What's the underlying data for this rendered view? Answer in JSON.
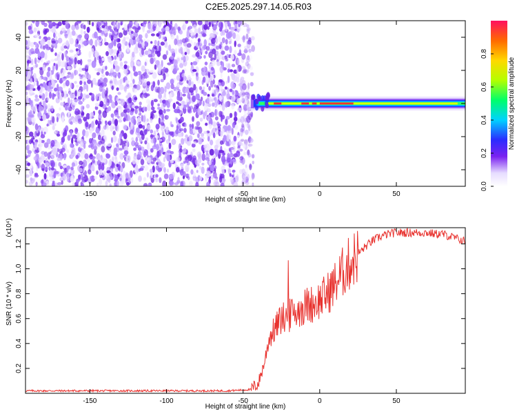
{
  "title": "C2E5.2025.297.14.05.R03",
  "chart_data": [
    {
      "type": "heatmap",
      "xlabel": "Height of straight line (km)",
      "ylabel": "Frequency (Hz)",
      "xlim": [
        -192,
        95
      ],
      "ylim": [
        -50,
        50
      ],
      "xticks": [
        -150,
        -100,
        -50,
        0,
        50
      ],
      "yticks": [
        -40,
        -20,
        0,
        20,
        40
      ],
      "colorbar": {
        "label": "Normalized spectral amplitude",
        "range": [
          0,
          1
        ],
        "ticks": [
          "0.0",
          "0.2",
          "0.4",
          "0.6",
          "0.8"
        ]
      },
      "features": [
        {
          "name": "noise",
          "x": [
            -192,
            -47
          ],
          "y": [
            -50,
            50
          ],
          "amplitude": 0.1
        },
        {
          "name": "carrier",
          "x": [
            -45,
            95
          ],
          "freq_hz": 0,
          "amplitude": 1.0
        }
      ]
    },
    {
      "type": "line",
      "xlabel": "Height of straight line (km)",
      "ylabel": "SNR (10 * v/v)",
      "y_multiplier": "(x10⁴)",
      "xlim": [
        -192,
        95
      ],
      "ylim": [
        0,
        1.33
      ],
      "xticks": [
        -150,
        -100,
        -50,
        0,
        50
      ],
      "yticks": [
        "0.2",
        "0.4",
        "0.6",
        "0.8",
        "1.0",
        "1.2"
      ],
      "series": [
        {
          "x": [
            -192,
            -120,
            -60,
            -45,
            -40,
            -36,
            -33,
            -30,
            -25,
            -20,
            -15,
            -10,
            -5,
            0,
            5,
            10,
            15,
            20,
            25,
            30,
            35,
            40,
            45,
            50,
            55,
            60,
            65,
            70,
            75,
            80,
            85,
            90,
            95
          ],
          "y": [
            0.02,
            0.02,
            0.02,
            0.03,
            0.08,
            0.25,
            0.45,
            0.5,
            0.6,
            0.62,
            0.66,
            0.7,
            0.72,
            0.75,
            0.8,
            0.88,
            0.97,
            1.05,
            1.12,
            1.18,
            1.23,
            1.26,
            1.28,
            1.29,
            1.29,
            1.29,
            1.29,
            1.29,
            1.28,
            1.28,
            1.26,
            1.24,
            1.22
          ]
        }
      ]
    }
  ]
}
